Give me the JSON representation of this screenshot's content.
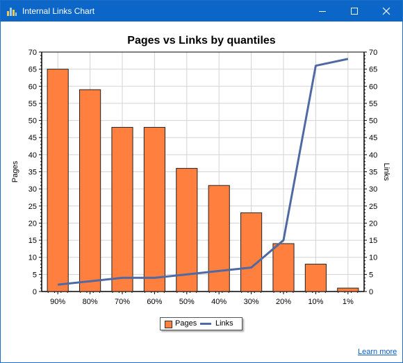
{
  "window": {
    "title": "Internal Links Chart"
  },
  "colors": {
    "titlebar": "#0b66c7",
    "bar_fill": "#ff7f3f",
    "line": "#4f6aa3",
    "grid": "#d3d3d3"
  },
  "learn_more": "Learn more",
  "legend": {
    "pages": "Pages",
    "links": "Links"
  },
  "chart_data": {
    "type": "bar",
    "title": "Pages vs Links by quantiles",
    "ylabel": "Pages",
    "y2label": "Links",
    "categories": [
      "90%",
      "80%",
      "70%",
      "60%",
      "50%",
      "40%",
      "30%",
      "20%",
      "10%",
      "1%"
    ],
    "ylim": [
      0,
      70
    ],
    "y2lim": [
      0,
      70
    ],
    "yticks": [
      "0",
      "5",
      "10",
      "15",
      "20",
      "25",
      "30",
      "35",
      "40",
      "45",
      "50",
      "55",
      "60",
      "65",
      "70"
    ],
    "y2ticks": [
      "0",
      "5",
      "10",
      "15",
      "20",
      "25",
      "30",
      "35",
      "40",
      "45",
      "50",
      "55",
      "60",
      "65",
      "70"
    ],
    "grid": true,
    "legend_position": "bottom",
    "series": [
      {
        "name": "Pages",
        "type": "bar",
        "axis": "left",
        "values": [
          65,
          59,
          48,
          48,
          36,
          31,
          23,
          14,
          8,
          1
        ]
      },
      {
        "name": "Links",
        "type": "line",
        "axis": "right",
        "values": [
          2,
          3,
          4,
          4,
          5,
          6,
          7,
          15,
          66,
          68
        ]
      }
    ]
  }
}
